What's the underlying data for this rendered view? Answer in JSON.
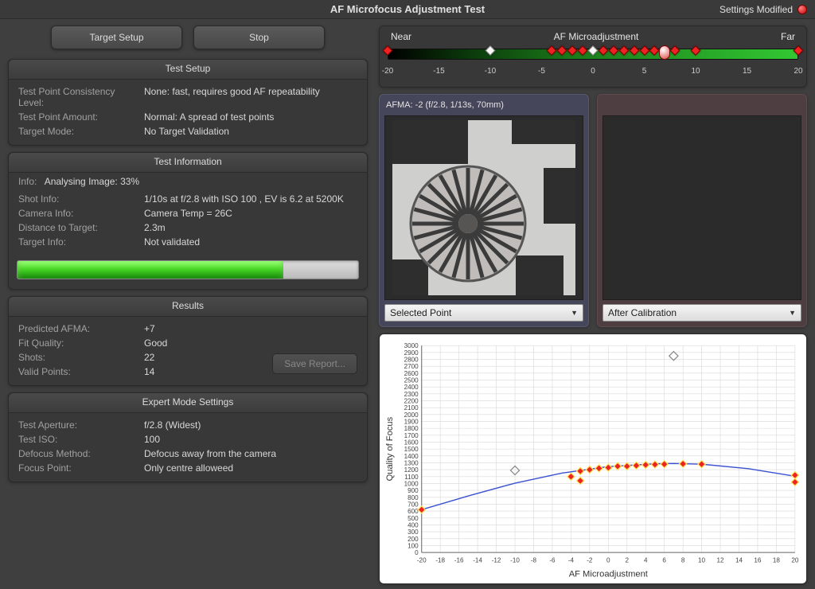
{
  "colors": {
    "bg": "#3f3f3f",
    "panel": "#383838",
    "text": "#cccccc",
    "text_dim": "#a0a0a0",
    "marker_red": "#ee2222",
    "marker_white": "#fafafa",
    "curve": "#3a52d0",
    "chart_grid": "#d8d8d8"
  },
  "title": "AF Microfocus Adjustment Test",
  "settings_modified": "Settings Modified",
  "buttons": {
    "target_setup": "Target Setup",
    "stop": "Stop",
    "save_report": "Save Report..."
  },
  "panels": {
    "test_setup": "Test Setup",
    "test_info": "Test Information",
    "results": "Results",
    "expert": "Expert Mode Settings"
  },
  "test_setup": {
    "consistency_label": "Test Point Consistency Level:",
    "consistency_value": "None: fast, requires good AF repeatability",
    "amount_label": "Test Point Amount:",
    "amount_value": "Normal: A spread of test points",
    "target_mode_label": "Target Mode:",
    "target_mode_value": "No Target Validation"
  },
  "test_info": {
    "info_label": "Info:",
    "info_value": "Analysing Image: 33%",
    "shot_label": "Shot Info:",
    "shot_value": "1/10s at f/2.8 with ISO 100 , EV is 6.2 at 5200K",
    "camera_label": "Camera Info:",
    "camera_value": "Camera Temp = 26C",
    "distance_label": "Distance to Target:",
    "distance_value": "2.3m",
    "target_label": "Target Info:",
    "target_value": "Not validated",
    "progress_pct": 78
  },
  "results": {
    "pred_label": "Predicted AFMA:",
    "pred_value": "+7",
    "fit_label": "Fit Quality:",
    "fit_value": "Good",
    "shots_label": "Shots:",
    "shots_value": "22",
    "valid_label": "Valid Points:",
    "valid_value": "14"
  },
  "expert": {
    "aperture_label": "Test Aperture:",
    "aperture_value": "f/2.8 (Widest)",
    "iso_label": "Test ISO:",
    "iso_value": "100",
    "defocus_label": "Defocus Method:",
    "defocus_value": "Defocus away from the camera",
    "focus_label": "Focus Point:",
    "focus_value": "Only centre alloweed"
  },
  "slider": {
    "near": "Near",
    "center": "AF Microadjustment",
    "far": "Far",
    "min": -20,
    "max": 20,
    "ticks": [
      "-20",
      "-15",
      "-10",
      "-5",
      "0",
      "5",
      "10",
      "15",
      "20"
    ],
    "red_points": [
      -20,
      -4,
      -3,
      -2,
      -1,
      1,
      2,
      3,
      4,
      5,
      6,
      8,
      10,
      20
    ],
    "white_points": [
      -10,
      0
    ],
    "selector": 7
  },
  "preview": {
    "header": "AFMA: -2 (f/2.8, 1/13s, 70mm)",
    "left_dropdown": "Selected Point",
    "right_dropdown": "After Calibration"
  },
  "chart": {
    "type": "scatter+curve",
    "xlabel": "AF Microadjustment",
    "ylabel": "Quality of Focus",
    "xlim": [
      -20,
      20
    ],
    "xtick_step": 2,
    "ylim": [
      0,
      3000
    ],
    "ytick_step": 100,
    "background_color": "#ffffff",
    "grid_color": "#d8d8d8",
    "axis_color": "#666666",
    "tick_fontsize": 8,
    "label_fontsize": 11,
    "marker": {
      "shape": "diamond",
      "fill": "#ee2222",
      "stroke": "#ffe25a",
      "size": 9
    },
    "open_marker": {
      "shape": "diamond",
      "fill": "none",
      "stroke": "#888888",
      "size": 11
    },
    "curve_color": "#3a52d0",
    "curve_width": 1.4,
    "points": [
      {
        "x": -20,
        "y": 620
      },
      {
        "x": -4,
        "y": 1100
      },
      {
        "x": -3,
        "y": 1180
      },
      {
        "x": -3,
        "y": 1040
      },
      {
        "x": -2,
        "y": 1200
      },
      {
        "x": -1,
        "y": 1220
      },
      {
        "x": 0,
        "y": 1230
      },
      {
        "x": 1,
        "y": 1250
      },
      {
        "x": 2,
        "y": 1250
      },
      {
        "x": 3,
        "y": 1260
      },
      {
        "x": 4,
        "y": 1270
      },
      {
        "x": 5,
        "y": 1275
      },
      {
        "x": 6,
        "y": 1280
      },
      {
        "x": 8,
        "y": 1285
      },
      {
        "x": 10,
        "y": 1280
      },
      {
        "x": 20,
        "y": 1120
      },
      {
        "x": 20,
        "y": 1020
      }
    ],
    "open_points": [
      {
        "x": -10,
        "y": 1190
      },
      {
        "x": 7,
        "y": 2850
      }
    ],
    "curve": [
      {
        "x": -20,
        "y": 620
      },
      {
        "x": -15,
        "y": 820
      },
      {
        "x": -10,
        "y": 1005
      },
      {
        "x": -5,
        "y": 1150
      },
      {
        "x": 0,
        "y": 1245
      },
      {
        "x": 5,
        "y": 1285
      },
      {
        "x": 7,
        "y": 1290
      },
      {
        "x": 10,
        "y": 1280
      },
      {
        "x": 15,
        "y": 1215
      },
      {
        "x": 20,
        "y": 1105
      }
    ]
  }
}
